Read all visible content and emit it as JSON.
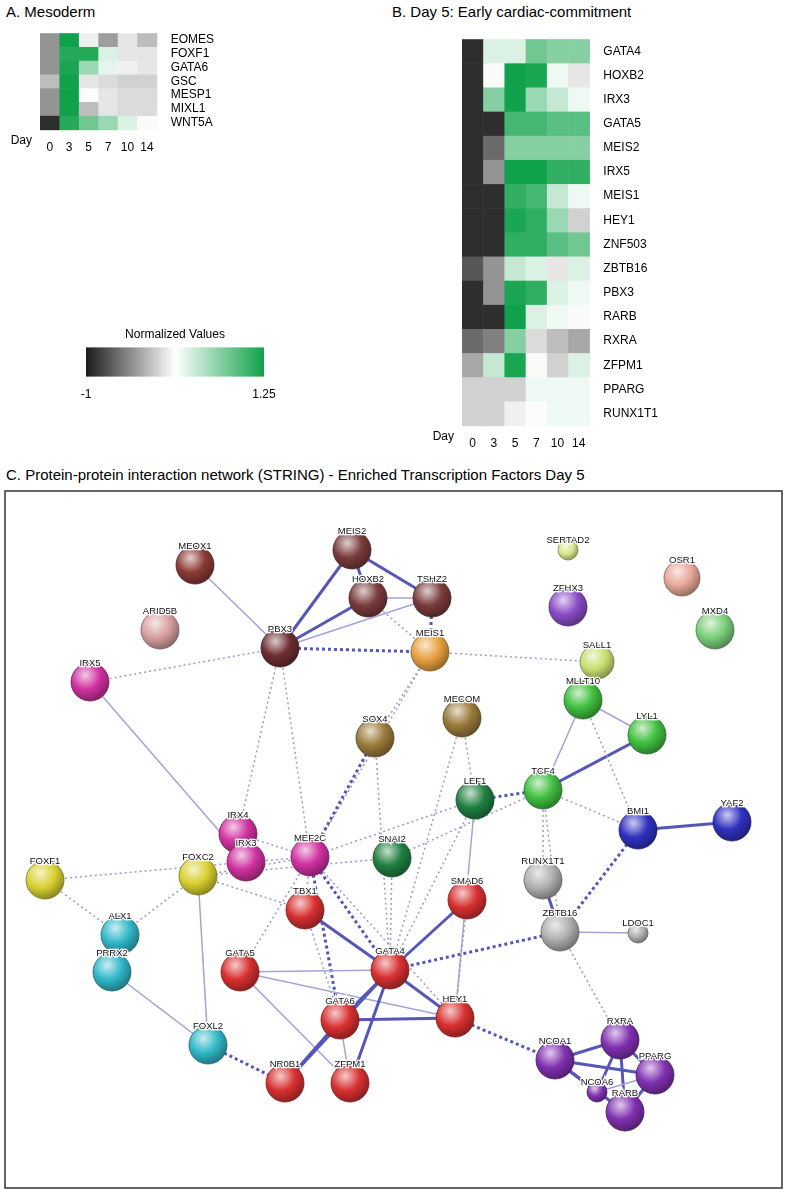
{
  "chart_data": [
    {
      "type": "heatmap",
      "title": "A. Mesoderm",
      "x_label": "Day",
      "x": [
        0,
        3,
        5,
        7,
        10,
        14
      ],
      "y": [
        "EOMES",
        "FOXF1",
        "GATA6",
        "GSC",
        "MESP1",
        "MIXL1",
        "WNT5A"
      ],
      "cells": [
        [
          -0.4,
          1.25,
          0.05,
          -0.35,
          0.0,
          -0.2
        ],
        [
          -0.4,
          1.15,
          1.15,
          0.3,
          0.0,
          0.0
        ],
        [
          -0.4,
          1.2,
          0.6,
          0.25,
          0.05,
          0.0
        ],
        [
          -0.2,
          1.25,
          0.0,
          -0.05,
          -0.1,
          -0.1
        ],
        [
          -0.4,
          1.25,
          0.15,
          0.0,
          -0.05,
          -0.05
        ],
        [
          -0.4,
          1.25,
          -0.2,
          0.0,
          -0.05,
          -0.05
        ],
        [
          -0.9,
          1.15,
          0.8,
          0.6,
          0.3,
          0.1
        ]
      ],
      "colorbar": {
        "label": "Normalized Values",
        "range": [
          -1,
          1.25
        ],
        "ticks": [
          -1,
          1.25
        ],
        "colors": [
          "#1a1a1a",
          "#ffffff",
          "#10a24a"
        ]
      }
    },
    {
      "type": "heatmap",
      "title": "B. Day 5: Early cardiac-commitment",
      "x_label": "Day",
      "x": [
        0,
        3,
        5,
        7,
        10,
        14
      ],
      "y": [
        "GATA4",
        "HOXB2",
        "IRX3",
        "GATA5",
        "MEIS2",
        "IRX5",
        "MEIS1",
        "HEY1",
        "ZNF503",
        "ZBTB16",
        "PBX3",
        "RARB",
        "RXRA",
        "ZFPM1",
        "PPARG",
        "RUNX1T1"
      ],
      "cells": [
        [
          -0.9,
          0.3,
          0.3,
          0.8,
          0.7,
          0.7
        ],
        [
          -0.9,
          0.1,
          1.25,
          1.2,
          0.2,
          0.0
        ],
        [
          -0.9,
          0.7,
          1.25,
          0.6,
          0.4,
          0.2
        ],
        [
          -0.9,
          -0.9,
          1.0,
          1.0,
          0.9,
          0.9
        ],
        [
          -0.9,
          -0.6,
          0.7,
          0.7,
          0.7,
          0.7
        ],
        [
          -0.9,
          -0.4,
          1.25,
          1.25,
          1.1,
          1.1
        ],
        [
          -0.9,
          -0.9,
          1.1,
          1.0,
          0.4,
          0.2
        ],
        [
          -0.9,
          -0.9,
          1.2,
          1.1,
          0.6,
          -0.1
        ],
        [
          -0.9,
          -0.9,
          1.1,
          1.1,
          0.9,
          0.8
        ],
        [
          -0.7,
          -0.4,
          0.4,
          0.3,
          0.0,
          0.3
        ],
        [
          -0.9,
          -0.4,
          1.2,
          1.1,
          0.3,
          0.2
        ],
        [
          -0.9,
          -0.9,
          1.25,
          0.3,
          0.2,
          0.1
        ],
        [
          -0.6,
          -0.5,
          0.7,
          -0.05,
          -0.2,
          -0.3
        ],
        [
          -0.3,
          0.4,
          1.2,
          0.1,
          -0.1,
          0.3
        ],
        [
          -0.1,
          -0.1,
          -0.1,
          0.2,
          0.2,
          0.2
        ],
        [
          -0.1,
          -0.1,
          0.05,
          0.15,
          0.2,
          0.2
        ]
      ]
    }
  ],
  "diagram": {
    "title": "C. Protein-protein interaction network (STRING) - Enriched Transcription Factors Day 5",
    "nodes": [
      {
        "label": "MEOX1",
        "color": "#8b3a36"
      },
      {
        "label": "MEIS2",
        "color": "#7b3b3b"
      },
      {
        "label": "HOXB2",
        "color": "#7b3b3b"
      },
      {
        "label": "TSHZ2",
        "color": "#7b3b3b"
      },
      {
        "label": "SERTAD2",
        "color": "#d8e88a"
      },
      {
        "label": "OSR1",
        "color": "#e8a898"
      },
      {
        "label": "ZFHX3",
        "color": "#8a4cc8"
      },
      {
        "label": "MXD4",
        "color": "#7ccf7c"
      },
      {
        "label": "ARID5B",
        "color": "#d8a0a0"
      },
      {
        "label": "PBX3",
        "color": "#6e2e30"
      },
      {
        "label": "MEIS1",
        "color": "#e8a040"
      },
      {
        "label": "SALL1",
        "color": "#c8e070"
      },
      {
        "label": "IRX5",
        "color": "#d030a0"
      },
      {
        "label": "MLLT10",
        "color": "#40c040"
      },
      {
        "label": "MECOM",
        "color": "#9a7a3a"
      },
      {
        "label": "SOX4",
        "color": "#9a7a3a"
      },
      {
        "label": "LYL1",
        "color": "#40c040"
      },
      {
        "label": "TCF4",
        "color": "#40c040"
      },
      {
        "label": "YAF2",
        "color": "#3030c0"
      },
      {
        "label": "LEF1",
        "color": "#208040"
      },
      {
        "label": "BMI1",
        "color": "#3030c0"
      },
      {
        "label": "IRX4",
        "color": "#d030a0"
      },
      {
        "label": "MEF2C",
        "color": "#d030a0"
      },
      {
        "label": "IRX3",
        "color": "#d030a0"
      },
      {
        "label": "SNAI2",
        "color": "#208040"
      },
      {
        "label": "FOXF1",
        "color": "#d8d030"
      },
      {
        "label": "FOXC2",
        "color": "#d8d030"
      },
      {
        "label": "RUNX1T1",
        "color": "#b0b0b0"
      },
      {
        "label": "ZBTB16",
        "color": "#b0b0b0"
      },
      {
        "label": "LDOC1",
        "color": "#b0b0b0"
      },
      {
        "label": "TBX1",
        "color": "#d83030"
      },
      {
        "label": "SMAD6",
        "color": "#d83030"
      },
      {
        "label": "ALX1",
        "color": "#30b8c8"
      },
      {
        "label": "GATA5",
        "color": "#d83030"
      },
      {
        "label": "GATA4",
        "color": "#d83030"
      },
      {
        "label": "HEY1",
        "color": "#d83030"
      },
      {
        "label": "PRRX2",
        "color": "#30b8c8"
      },
      {
        "label": "GATA6",
        "color": "#d83030"
      },
      {
        "label": "FOXL2",
        "color": "#30b8c8"
      },
      {
        "label": "RXRA",
        "color": "#8030b0"
      },
      {
        "label": "NCOA1",
        "color": "#8030b0"
      },
      {
        "label": "PPARG",
        "color": "#8030b0"
      },
      {
        "label": "NCOA6",
        "color": "#8030b0"
      },
      {
        "label": "RARB",
        "color": "#8030b0"
      },
      {
        "label": "ZFPM1",
        "color": "#d83030"
      },
      {
        "label": "NR0B1",
        "color": "#d83030"
      }
    ],
    "edges": [
      {
        "source": "MEOX1",
        "target": "PBX3",
        "line_style": "solid"
      },
      {
        "source": "MEIS2",
        "target": "HOXB2",
        "line_style": "solid_thick"
      },
      {
        "source": "MEIS2",
        "target": "PBX3",
        "line_style": "solid_thick"
      },
      {
        "source": "MEIS2",
        "target": "TSHZ2",
        "line_style": "solid_thick"
      },
      {
        "source": "HOXB2",
        "target": "PBX3",
        "line_style": "solid_thick"
      },
      {
        "source": "HOXB2",
        "target": "TSHZ2",
        "line_style": "solid"
      },
      {
        "source": "PBX3",
        "target": "TSHZ2",
        "line_style": "solid"
      },
      {
        "source": "TSHZ2",
        "target": "MEIS1",
        "line_style": "dotted_thick"
      },
      {
        "source": "PBX3",
        "target": "MEIS1",
        "line_style": "dotted_thick"
      },
      {
        "source": "HOXB2",
        "target": "MEIS1",
        "line_style": "dotted"
      },
      {
        "source": "IRX5",
        "target": "PBX3",
        "line_style": "dotted"
      },
      {
        "source": "IRX5",
        "target": "IRX3",
        "line_style": "solid"
      },
      {
        "source": "PBX3",
        "target": "IRX4",
        "line_style": "dotted"
      },
      {
        "source": "PBX3",
        "target": "MEF2C",
        "line_style": "dotted"
      },
      {
        "source": "MEIS1",
        "target": "SOX4",
        "line_style": "dotted"
      },
      {
        "source": "MEIS1",
        "target": "SALL1",
        "line_style": "dotted"
      },
      {
        "source": "MEIS1",
        "target": "MEF2C",
        "line_style": "dotted"
      },
      {
        "source": "MECOM",
        "target": "LEF1",
        "line_style": "dotted"
      },
      {
        "source": "MECOM",
        "target": "GATA4",
        "line_style": "dotted"
      },
      {
        "source": "SOX4",
        "target": "MEF2C",
        "line_style": "dotted_thick"
      },
      {
        "source": "SOX4",
        "target": "GATA4",
        "line_style": "dotted"
      },
      {
        "source": "SALL1",
        "target": "MLLT10",
        "line_style": "dotted"
      },
      {
        "source": "MLLT10",
        "target": "LYL1",
        "line_style": "solid"
      },
      {
        "source": "MLLT10",
        "target": "TCF4",
        "line_style": "solid"
      },
      {
        "source": "TCF4",
        "target": "LYL1",
        "line_style": "solid_thick"
      },
      {
        "source": "TCF4",
        "target": "LEF1",
        "line_style": "dotted_thick"
      },
      {
        "source": "TCF4",
        "target": "BMI1",
        "line_style": "dotted"
      },
      {
        "source": "TCF4",
        "target": "RUNX1T1",
        "line_style": "dotted"
      },
      {
        "source": "TCF4",
        "target": "ZBTB16",
        "line_style": "dotted"
      },
      {
        "source": "TCF4",
        "target": "SNAI2",
        "line_style": "dotted"
      },
      {
        "source": "MLLT10",
        "target": "BMI1",
        "line_style": "dotted"
      },
      {
        "source": "BMI1",
        "target": "YAF2",
        "line_style": "solid_thick"
      },
      {
        "source": "BMI1",
        "target": "ZBTB16",
        "line_style": "dotted_thick"
      },
      {
        "source": "RUNX1T1",
        "target": "ZBTB16",
        "line_style": "solid_thick"
      },
      {
        "source": "ZBTB16",
        "target": "LDOC1",
        "line_style": "solid"
      },
      {
        "source": "ZBTB16",
        "target": "GATA4",
        "line_style": "dotted_thick"
      },
      {
        "source": "ZBTB16",
        "target": "RXRA",
        "line_style": "dotted"
      },
      {
        "source": "LEF1",
        "target": "MEF2C",
        "line_style": "dotted"
      },
      {
        "source": "LEF1",
        "target": "GATA4",
        "line_style": "dotted"
      },
      {
        "source": "LEF1",
        "target": "HEY1",
        "line_style": "solid"
      },
      {
        "source": "SNAI2",
        "target": "FOXC2",
        "line_style": "dotted"
      },
      {
        "source": "SNAI2",
        "target": "GATA4",
        "line_style": "dotted"
      },
      {
        "source": "IRX4",
        "target": "MEF2C",
        "line_style": "dotted"
      },
      {
        "source": "IRX3",
        "target": "MEF2C",
        "line_style": "dotted"
      },
      {
        "source": "MEF2C",
        "target": "GATA4",
        "line_style": "dotted_thick"
      },
      {
        "source": "MEF2C",
        "target": "TBX1",
        "line_style": "dotted"
      },
      {
        "source": "MEF2C",
        "target": "GATA6",
        "line_style": "dotted_thick"
      },
      {
        "source": "MEF2C",
        "target": "FOXC2",
        "line_style": "dotted"
      },
      {
        "source": "MEF2C",
        "target": "HEY1",
        "line_style": "dotted"
      },
      {
        "source": "MEF2C",
        "target": "GATA5",
        "line_style": "dotted"
      },
      {
        "source": "FOXF1",
        "target": "IRX3",
        "line_style": "dotted"
      },
      {
        "source": "FOXF1",
        "target": "ALX1",
        "line_style": "dotted"
      },
      {
        "source": "FOXC2",
        "target": "ALX1",
        "line_style": "dotted"
      },
      {
        "source": "FOXC2",
        "target": "FOXL2",
        "line_style": "solid"
      },
      {
        "source": "FOXC2",
        "target": "TBX1",
        "line_style": "dotted"
      },
      {
        "source": "ALX1",
        "target": "PRRX2",
        "line_style": "solid"
      },
      {
        "source": "PRRX2",
        "target": "FOXL2",
        "line_style": "solid"
      },
      {
        "source": "FOXL2",
        "target": "NR0B1",
        "line_style": "dotted_thick"
      },
      {
        "source": "TBX1",
        "target": "GATA4",
        "line_style": "solid_thick"
      },
      {
        "source": "TBX1",
        "target": "GATA6",
        "line_style": "dotted"
      },
      {
        "source": "GATA5",
        "target": "GATA4",
        "line_style": "solid"
      },
      {
        "source": "GATA5",
        "target": "ZFPM1",
        "line_style": "solid"
      },
      {
        "source": "GATA5",
        "target": "HEY1",
        "line_style": "solid"
      },
      {
        "source": "GATA4",
        "target": "GATA6",
        "line_style": "solid_thick"
      },
      {
        "source": "GATA4",
        "target": "ZFPM1",
        "line_style": "solid_thick"
      },
      {
        "source": "GATA4",
        "target": "NR0B1",
        "line_style": "solid_thick"
      },
      {
        "source": "GATA4",
        "target": "HEY1",
        "line_style": "solid_thick"
      },
      {
        "source": "GATA4",
        "target": "SMAD6",
        "line_style": "solid_thick"
      },
      {
        "source": "GATA6",
        "target": "NR0B1",
        "line_style": "solid_thick"
      },
      {
        "source": "GATA6",
        "target": "ZFPM1",
        "line_style": "solid"
      },
      {
        "source": "GATA6",
        "target": "HEY1",
        "line_style": "solid_thick"
      },
      {
        "source": "SMAD6",
        "target": "HEY1",
        "line_style": "dotted"
      },
      {
        "source": "HEY1",
        "target": "NCOA1",
        "line_style": "dotted_thick"
      },
      {
        "source": "RXRA",
        "target": "NCOA1",
        "line_style": "solid_thick"
      },
      {
        "source": "RXRA",
        "target": "PPARG",
        "line_style": "solid_thick"
      },
      {
        "source": "RXRA",
        "target": "RARB",
        "line_style": "solid_thick"
      },
      {
        "source": "RXRA",
        "target": "NCOA6",
        "line_style": "solid_thick"
      },
      {
        "source": "NCOA1",
        "target": "PPARG",
        "line_style": "solid_thick"
      },
      {
        "source": "NCOA1",
        "target": "NCOA6",
        "line_style": "solid_thick"
      },
      {
        "source": "NCOA1",
        "target": "RARB",
        "line_style": "solid_thick"
      },
      {
        "source": "PPARG",
        "target": "NCOA6",
        "line_style": "solid"
      },
      {
        "source": "PPARG",
        "target": "RARB",
        "line_style": "solid_thick"
      }
    ]
  }
}
